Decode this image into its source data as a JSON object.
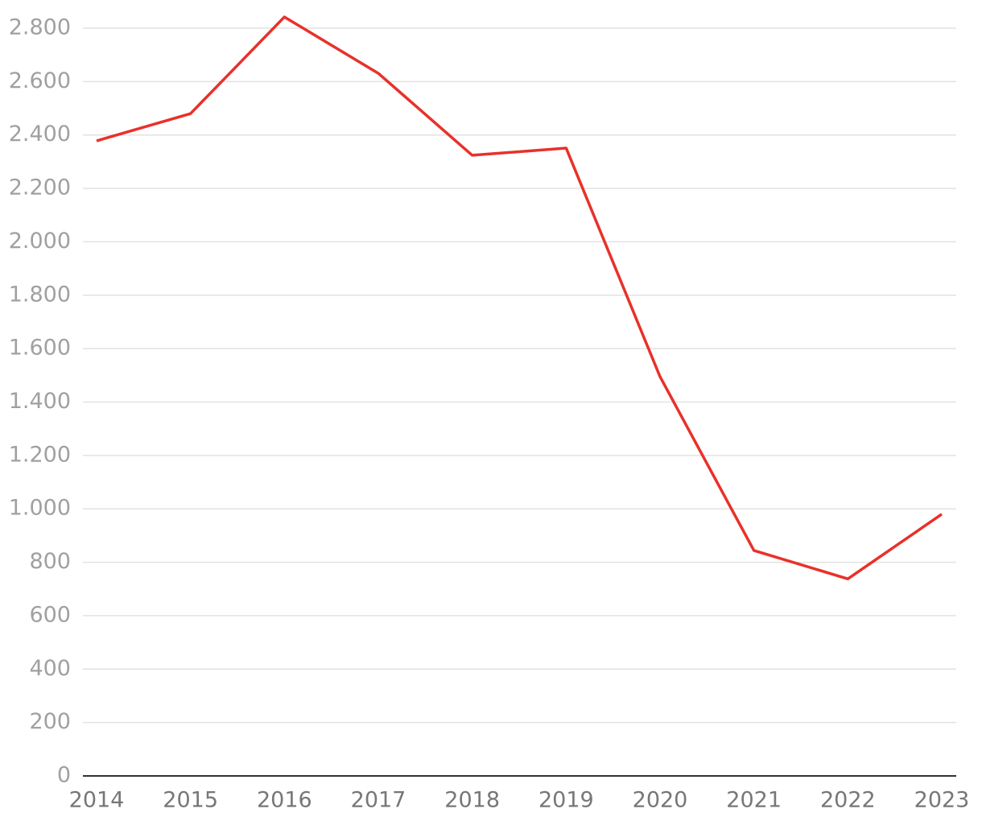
{
  "chart_data": {
    "type": "line",
    "categories": [
      "2014",
      "2015",
      "2016",
      "2017",
      "2018",
      "2019",
      "2020",
      "2021",
      "2022",
      "2023"
    ],
    "values": [
      2378,
      2480,
      2842,
      2631,
      2324,
      2351,
      1495,
      844,
      738,
      980
    ],
    "color": "#e8312a",
    "ylim": [
      0,
      2800
    ],
    "yticks": [
      0,
      200,
      400,
      600,
      800,
      {
        "value": 1000,
        "label": "1.000"
      },
      {
        "value": 1200,
        "label": "1.200"
      },
      {
        "value": 1400,
        "label": "1.400"
      },
      {
        "value": 1600,
        "label": "1.600"
      },
      {
        "value": 1800,
        "label": "1.800"
      },
      {
        "value": 2000,
        "label": "2.000"
      },
      {
        "value": 2200,
        "label": "2.200"
      },
      {
        "value": 2400,
        "label": "2.400"
      },
      {
        "value": 2600,
        "label": "2.600"
      },
      {
        "value": 2800,
        "label": "2.800"
      }
    ],
    "grid": true
  }
}
